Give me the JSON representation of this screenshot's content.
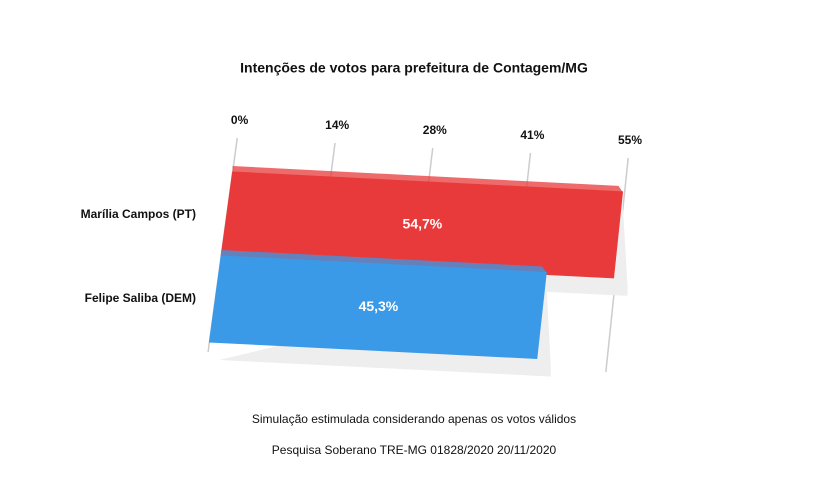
{
  "chart_data": {
    "type": "bar3d",
    "title": "Intenções de votos para prefeitura de Contagem/MG",
    "categories": [
      "Marília Campos (PT)",
      "Felipe Saliba (DEM)"
    ],
    "values": [
      54.7,
      45.3
    ],
    "value_labels": [
      "54,7%",
      "45,3%"
    ],
    "colors": [
      "#e83a3a",
      "#3a9ae8"
    ],
    "xlim": [
      0,
      55
    ],
    "xticks": [
      {
        "value": 0,
        "label": "0%"
      },
      {
        "value": 13.75,
        "label": "14%"
      },
      {
        "value": 27.5,
        "label": "28%"
      },
      {
        "value": 41.25,
        "label": "41%"
      },
      {
        "value": 55,
        "label": "55%"
      }
    ],
    "grid": true,
    "notes": [
      "Simulação estimulada considerando apenas os votos válidos",
      "Pesquisa Soberano TRE-MG 01828/2020 20/11/2020"
    ]
  }
}
